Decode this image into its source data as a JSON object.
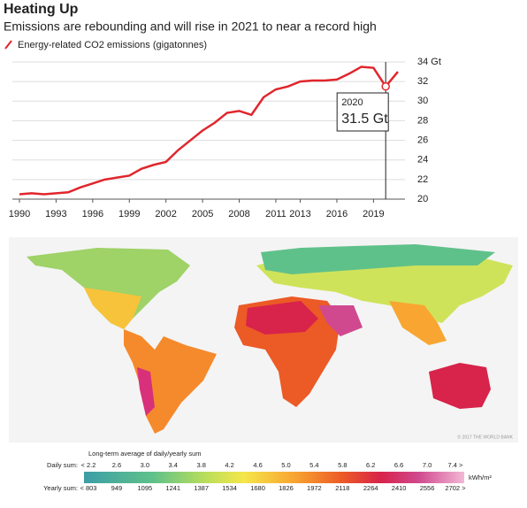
{
  "chart_data": {
    "type": "line",
    "title": "Heating Up",
    "subtitle": "Emissions are rebounding and will rise in 2021 to near a record high",
    "x": [
      1990,
      1991,
      1992,
      1993,
      1994,
      1995,
      1996,
      1997,
      1998,
      1999,
      2000,
      2001,
      2002,
      2003,
      2004,
      2005,
      2006,
      2007,
      2008,
      2009,
      2010,
      2011,
      2012,
      2013,
      2014,
      2015,
      2016,
      2017,
      2018,
      2019,
      2020,
      2021
    ],
    "series": [
      {
        "name": "Energy-related CO2 emissions (gigatonnes)",
        "color": "#e0262c",
        "values": [
          20.5,
          20.6,
          20.5,
          20.6,
          20.7,
          21.2,
          21.6,
          22.0,
          22.2,
          22.4,
          23.1,
          23.5,
          23.8,
          25.0,
          26.0,
          27.0,
          27.8,
          28.8,
          29.0,
          28.6,
          30.4,
          31.2,
          31.5,
          32.0,
          32.1,
          32.1,
          32.2,
          32.8,
          33.5,
          33.4,
          31.5,
          33.0
        ]
      }
    ],
    "xlim": [
      1990,
      2021
    ],
    "xticks": [
      1990,
      1993,
      1996,
      1999,
      2002,
      2005,
      2008,
      2011,
      2013,
      2016,
      2019
    ],
    "ylim": [
      20,
      34
    ],
    "yticks": [
      20,
      22,
      24,
      26,
      28,
      30,
      32,
      {
        "value": 34,
        "label": "34 Gt"
      }
    ],
    "grid": true,
    "annotation": {
      "x": 2020,
      "title": "2020",
      "text": "31.5 Gt"
    }
  },
  "map": {
    "legend": {
      "title": "Long-term average of daily/yearly sum",
      "daily_label": "Daily sum:",
      "daily": [
        "< 2.2",
        "2.6",
        "3.0",
        "3.4",
        "3.8",
        "4.2",
        "4.6",
        "5.0",
        "5.4",
        "5.8",
        "6.2",
        "6.6",
        "7.0",
        "7.4 >"
      ],
      "unit": "kWh/m²",
      "yearly_label": "Yearly sum:",
      "yearly": [
        "< 803",
        "949",
        "1095",
        "1241",
        "1387",
        "1534",
        "1680",
        "1826",
        "1972",
        "2118",
        "2264",
        "2410",
        "2556",
        "2702 >"
      ]
    },
    "credit": "© 2017 THE WORLD BANK"
  }
}
